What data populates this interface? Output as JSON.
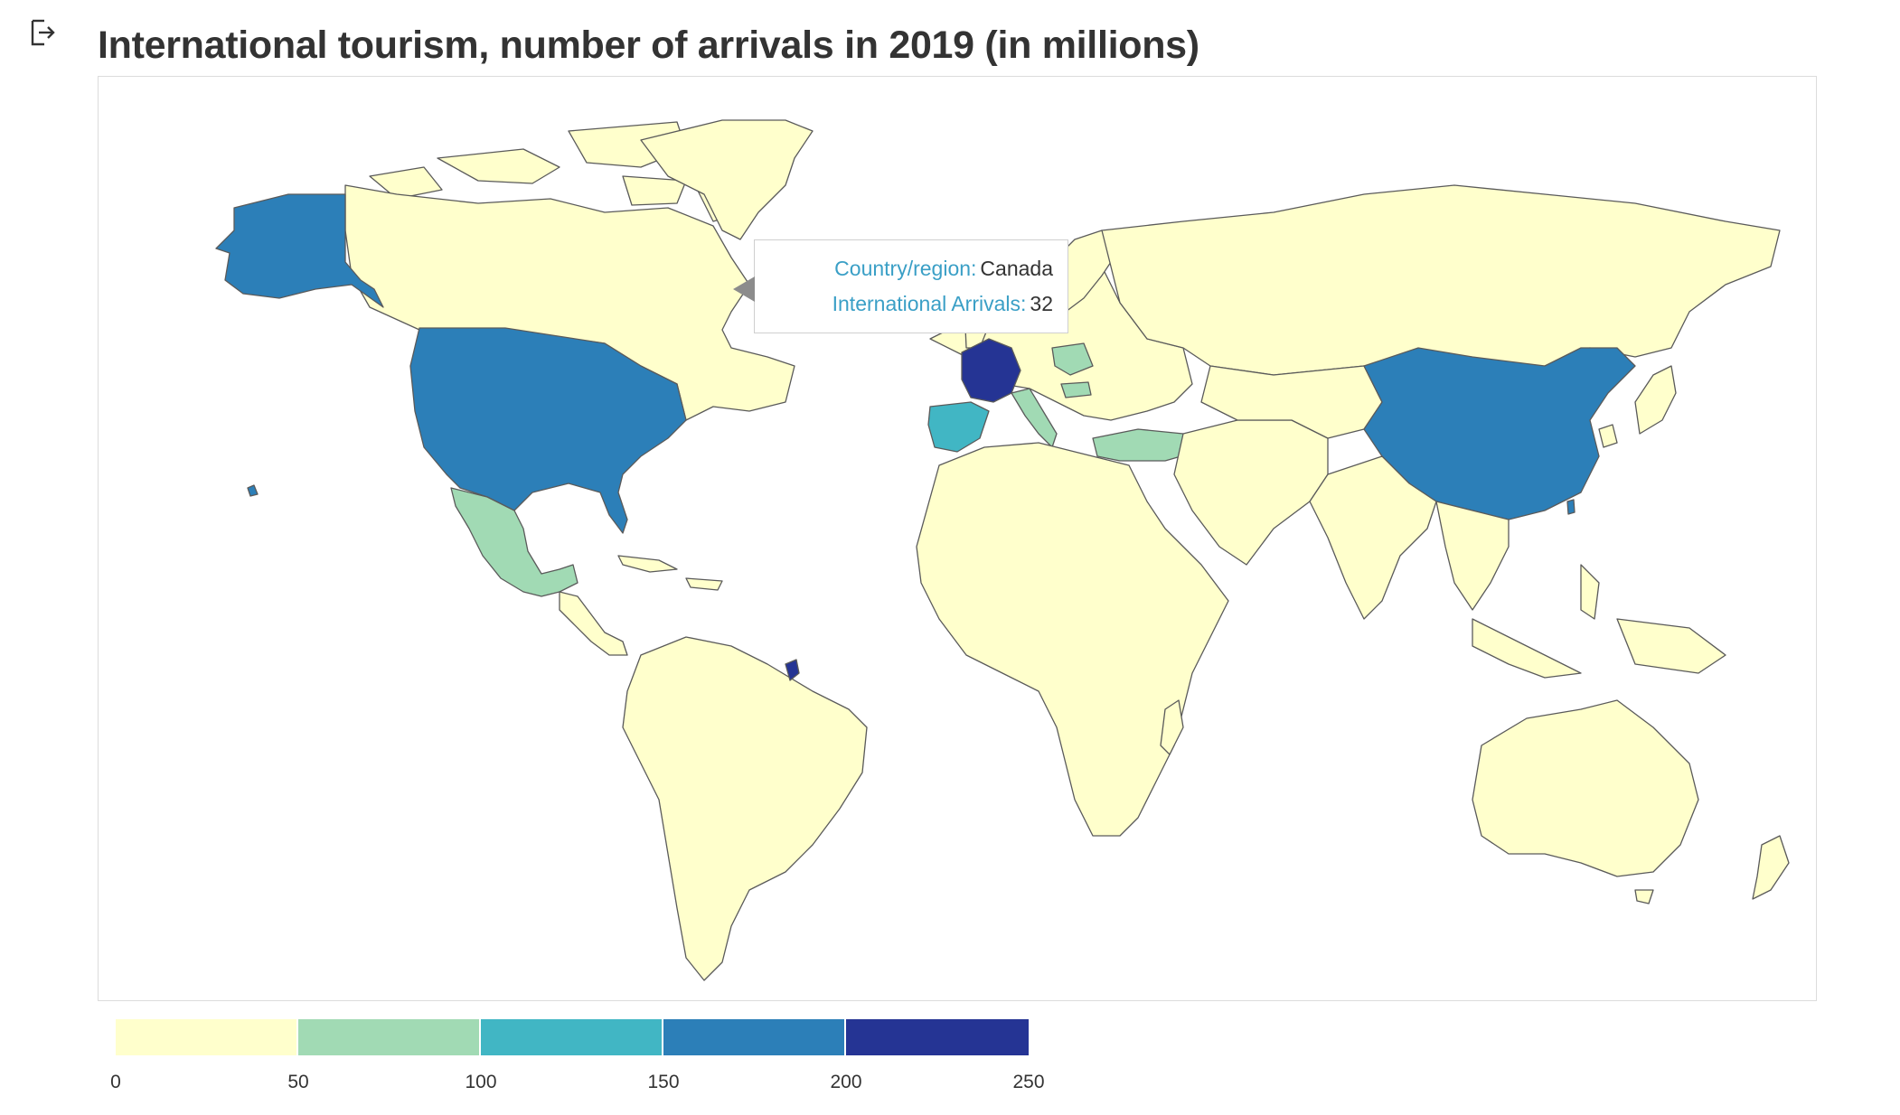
{
  "title": "International tourism, number of arrivals in 2019 (in millions)",
  "icons": {
    "corner": "open-in-new-window-icon"
  },
  "tooltip": {
    "country_key": "Country/region:",
    "country_value": "Canada",
    "arrivals_key": "International Arrivals:",
    "arrivals_value": "32"
  },
  "legend": {
    "colors": [
      "#ffffcc",
      "#a1dab4",
      "#41b6c4",
      "#2c7fb8",
      "#253494"
    ],
    "ticks": [
      "0",
      "50",
      "100",
      "150",
      "200",
      "250"
    ],
    "min": 0,
    "max": 250
  },
  "map": {
    "land_default_color": "#ffffcc",
    "border_color": "#5a5a5a",
    "highlighted": [
      {
        "country": "France",
        "bin": 4
      },
      {
        "country": "French Guiana",
        "bin": 4
      },
      {
        "country": "United States",
        "bin": 3
      },
      {
        "country": "China",
        "bin": 3
      },
      {
        "country": "Spain",
        "bin": 2
      },
      {
        "country": "Italy",
        "bin": 1
      },
      {
        "country": "Turkey",
        "bin": 1
      },
      {
        "country": "Mexico",
        "bin": 1
      },
      {
        "country": "Poland",
        "bin": 1
      },
      {
        "country": "Hungary",
        "bin": 1
      }
    ]
  }
}
